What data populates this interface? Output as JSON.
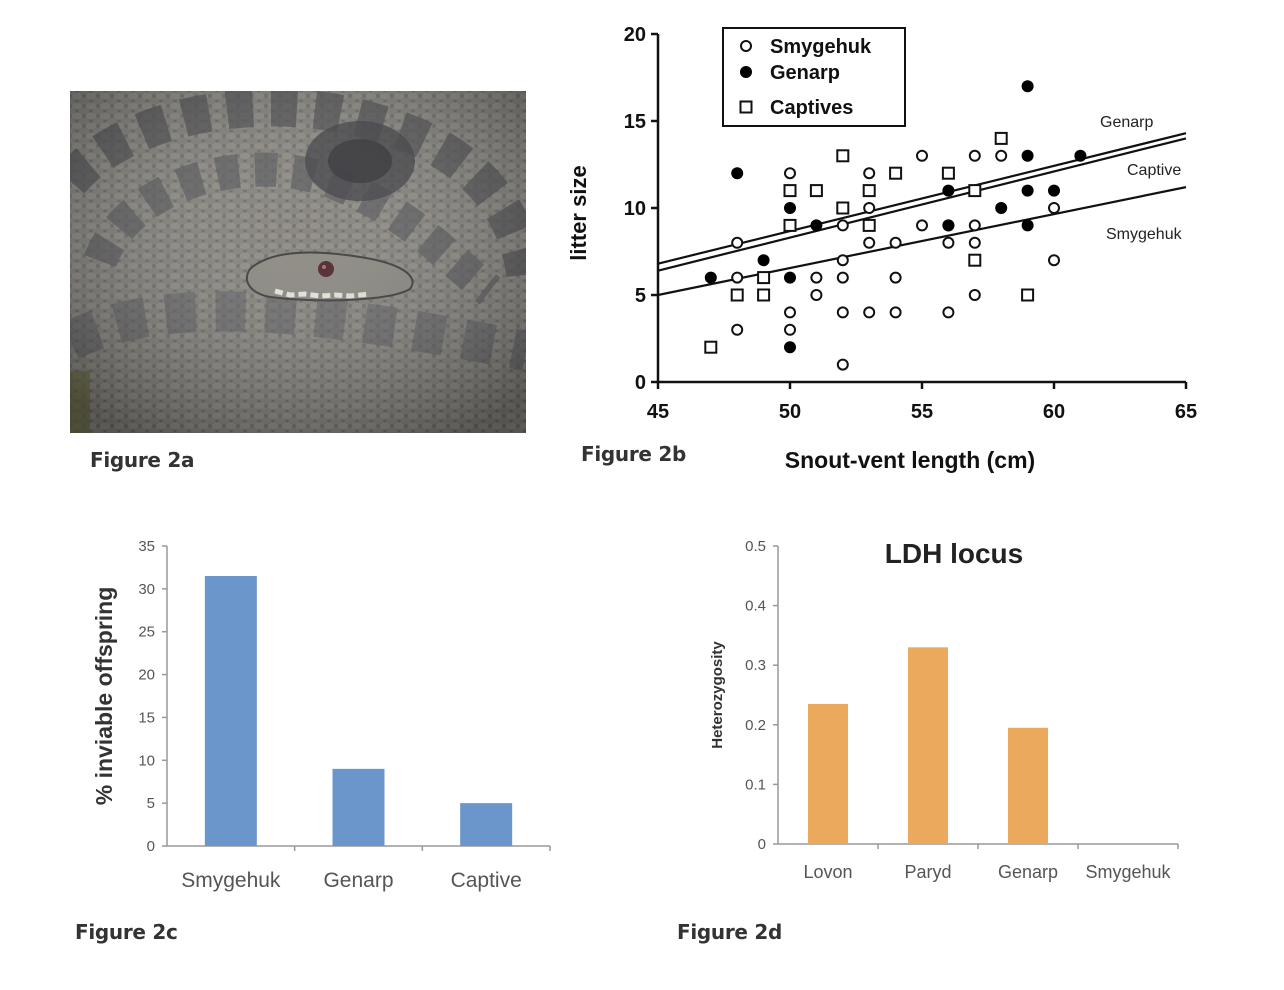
{
  "figures": {
    "fig2a": {
      "label": "Figure 2a",
      "image_subject": "coiled adder (viper) snake"
    },
    "fig2b": {
      "label": "Figure 2b"
    },
    "fig2c": {
      "label": "Figure 2c"
    },
    "fig2d": {
      "label": "Figure 2d"
    }
  },
  "chart_data": [
    {
      "id": "fig2b",
      "type": "scatter",
      "title": "",
      "xlabel": "Snout-vent length (cm)",
      "ylabel": "litter size",
      "xlim": [
        45,
        65
      ],
      "ylim": [
        0,
        20
      ],
      "xticks": [
        45,
        50,
        55,
        60,
        65
      ],
      "yticks": [
        0,
        5,
        10,
        15,
        20
      ],
      "grid": false,
      "legend": {
        "placement": "top-left-center",
        "entries": [
          {
            "name": "Smygehuk",
            "marker": "open-circle"
          },
          {
            "name": "Genarp",
            "marker": "filled-circle"
          },
          {
            "name": "Captives",
            "marker": "open-square"
          }
        ]
      },
      "series": [
        {
          "name": "Smygehuk",
          "marker": "open-circle",
          "points": [
            [
              48,
              8
            ],
            [
              48,
              6
            ],
            [
              48,
              3
            ],
            [
              50,
              12
            ],
            [
              50,
              4
            ],
            [
              50,
              3
            ],
            [
              51,
              6
            ],
            [
              51,
              5
            ],
            [
              52,
              9
            ],
            [
              52,
              7
            ],
            [
              52,
              6
            ],
            [
              52,
              4
            ],
            [
              52,
              1
            ],
            [
              53,
              12
            ],
            [
              53,
              10
            ],
            [
              53,
              8
            ],
            [
              53,
              4
            ],
            [
              54,
              8
            ],
            [
              54,
              6
            ],
            [
              54,
              4
            ],
            [
              55,
              13
            ],
            [
              55,
              9
            ],
            [
              56,
              9
            ],
            [
              56,
              8
            ],
            [
              56,
              4
            ],
            [
              57,
              13
            ],
            [
              57,
              9
            ],
            [
              57,
              8
            ],
            [
              57,
              5
            ],
            [
              58,
              13
            ],
            [
              60,
              10
            ],
            [
              60,
              7
            ]
          ]
        },
        {
          "name": "Genarp",
          "marker": "filled-circle",
          "points": [
            [
              47,
              6
            ],
            [
              48,
              12
            ],
            [
              49,
              7
            ],
            [
              50,
              10
            ],
            [
              50,
              6
            ],
            [
              50,
              2
            ],
            [
              51,
              9
            ],
            [
              56,
              11
            ],
            [
              56,
              9
            ],
            [
              58,
              10
            ],
            [
              59,
              17
            ],
            [
              59,
              13
            ],
            [
              59,
              11
            ],
            [
              59,
              9
            ],
            [
              60,
              11
            ],
            [
              61,
              13
            ]
          ]
        },
        {
          "name": "Captives",
          "marker": "open-square",
          "points": [
            [
              47,
              2
            ],
            [
              48,
              5
            ],
            [
              49,
              6
            ],
            [
              49,
              5
            ],
            [
              50,
              11
            ],
            [
              50,
              9
            ],
            [
              51,
              11
            ],
            [
              52,
              13
            ],
            [
              52,
              10
            ],
            [
              53,
              11
            ],
            [
              53,
              9
            ],
            [
              54,
              12
            ],
            [
              56,
              12
            ],
            [
              57,
              11
            ],
            [
              57,
              7
            ],
            [
              58,
              14
            ],
            [
              59,
              5
            ]
          ]
        }
      ],
      "regression_lines": [
        {
          "name": "Genarp",
          "label": "Genarp",
          "x": [
            45,
            65
          ],
          "y": [
            6.8,
            14.3
          ]
        },
        {
          "name": "Captive",
          "label": "Captive",
          "x": [
            45,
            65
          ],
          "y": [
            6.4,
            14.0
          ]
        },
        {
          "name": "Smygehuk",
          "label": "Smygehuk",
          "x": [
            45,
            65
          ],
          "y": [
            5.0,
            11.2
          ]
        }
      ]
    },
    {
      "id": "fig2c",
      "type": "bar",
      "title": "",
      "categories": [
        "Smygehuk",
        "Genarp",
        "Captive"
      ],
      "values": [
        31.5,
        9,
        5
      ],
      "xlabel": "",
      "ylabel": "% inviable offspring",
      "ylim": [
        0,
        35
      ],
      "yticks": [
        0,
        5,
        10,
        15,
        20,
        25,
        30,
        35
      ],
      "grid": false,
      "color": "#6a96cb"
    },
    {
      "id": "fig2d",
      "type": "bar",
      "title": "LDH locus",
      "categories": [
        "Lovon",
        "Paryd",
        "Genarp",
        "Smygehuk"
      ],
      "values": [
        0.235,
        0.33,
        0.195,
        0
      ],
      "xlabel": "",
      "ylabel": "Heterozygosity",
      "ylim": [
        0,
        0.5
      ],
      "yticks": [
        0,
        0.1,
        0.2,
        0.3,
        0.4,
        0.5
      ],
      "grid": false,
      "color": "#eba95e"
    }
  ]
}
